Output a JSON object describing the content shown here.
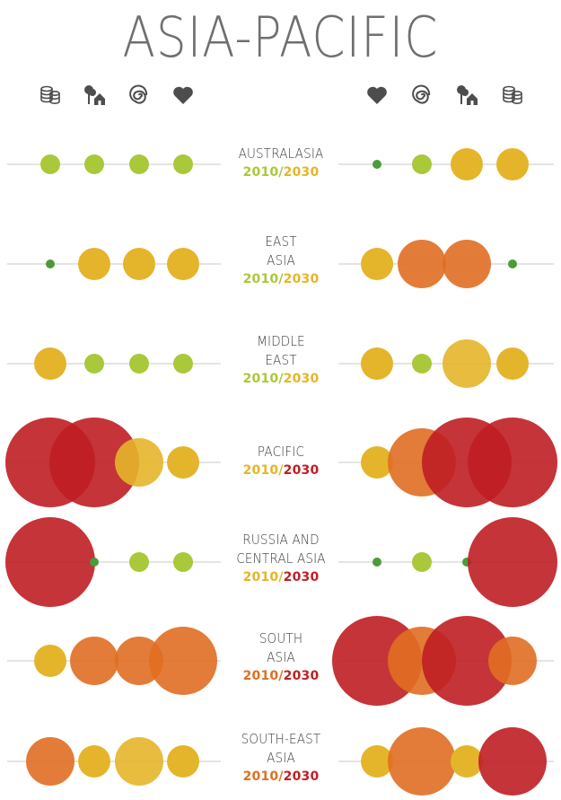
{
  "title": "ASIA-PACIFIC",
  "icons": {
    "left": [
      "coins-icon",
      "trees-and-house-icon",
      "spiral-icon",
      "heart-icon"
    ],
    "right": [
      "heart-icon",
      "spiral-icon",
      "trees-and-house-icon",
      "coins-icon"
    ]
  },
  "colors": {
    "line": "#c9c9c9",
    "icon": "#4d4d4d",
    "level_1": "#a9c83a",
    "level_0": "#4c9a3a",
    "level_2": "#e4b52a",
    "level_3": "#e06e22",
    "level_4": "#bf1e24",
    "label_text": "#3a3a3a"
  },
  "chart_data": {
    "type": "bubble",
    "title": "ASIA-PACIFIC",
    "level_colors": [
      "#4c9a3a",
      "#a9c83a",
      "#e4b52a",
      "#e06e22",
      "#bf1e24"
    ],
    "years": [
      "2010",
      "2030"
    ],
    "rows": [
      {
        "region": "AUSTRALASIA",
        "year_levels": [
          1,
          2
        ],
        "left": [
          {
            "level": 1,
            "size": 11
          },
          {
            "level": 1,
            "size": 11
          },
          {
            "level": 1,
            "size": 11
          },
          {
            "level": 1,
            "size": 11
          }
        ],
        "right": [
          {
            "level": 0,
            "size": 5
          },
          {
            "level": 1,
            "size": 11
          },
          {
            "level": 2,
            "size": 18
          },
          {
            "level": 2,
            "size": 18
          }
        ]
      },
      {
        "region": "EAST\nASIA",
        "year_levels": [
          1,
          2
        ],
        "left": [
          {
            "level": 0,
            "size": 5
          },
          {
            "level": 2,
            "size": 18
          },
          {
            "level": 2,
            "size": 18
          },
          {
            "level": 2,
            "size": 18
          }
        ],
        "right": [
          {
            "level": 2,
            "size": 18
          },
          {
            "level": 3,
            "size": 27
          },
          {
            "level": 3,
            "size": 27
          },
          {
            "level": 0,
            "size": 5
          }
        ]
      },
      {
        "region": "MIDDLE\nEAST",
        "year_levels": [
          1,
          2
        ],
        "left": [
          {
            "level": 2,
            "size": 18
          },
          {
            "level": 1,
            "size": 11
          },
          {
            "level": 1,
            "size": 11
          },
          {
            "level": 1,
            "size": 11
          }
        ],
        "right": [
          {
            "level": 2,
            "size": 18
          },
          {
            "level": 1,
            "size": 11
          },
          {
            "level": 2,
            "size": 27
          },
          {
            "level": 2,
            "size": 18
          }
        ]
      },
      {
        "region": "PACIFIC",
        "year_levels": [
          2,
          4
        ],
        "left": [
          {
            "level": 4,
            "size": 50
          },
          {
            "level": 4,
            "size": 50
          },
          {
            "level": 2,
            "size": 27
          },
          {
            "level": 2,
            "size": 18
          }
        ],
        "right": [
          {
            "level": 2,
            "size": 18
          },
          {
            "level": 3,
            "size": 38
          },
          {
            "level": 4,
            "size": 50
          },
          {
            "level": 4,
            "size": 50
          }
        ]
      },
      {
        "region": "RUSSIA AND\nCENTRAL ASIA",
        "year_levels": [
          2,
          4
        ],
        "left": [
          {
            "level": 4,
            "size": 50
          },
          {
            "level": 0,
            "size": 5
          },
          {
            "level": 1,
            "size": 11
          },
          {
            "level": 1,
            "size": 11
          }
        ],
        "right": [
          {
            "level": 0,
            "size": 5
          },
          {
            "level": 1,
            "size": 11
          },
          {
            "level": 0,
            "size": 5
          },
          {
            "level": 4,
            "size": 50
          }
        ]
      },
      {
        "region": "SOUTH\nASIA",
        "year_levels": [
          3,
          4
        ],
        "left": [
          {
            "level": 2,
            "size": 18
          },
          {
            "level": 3,
            "size": 27
          },
          {
            "level": 3,
            "size": 27
          },
          {
            "level": 3,
            "size": 38
          }
        ],
        "right": [
          {
            "level": 4,
            "size": 50
          },
          {
            "level": 3,
            "size": 38
          },
          {
            "level": 4,
            "size": 50
          },
          {
            "level": 3,
            "size": 27
          }
        ]
      },
      {
        "region": "SOUTH-EAST\nASIA",
        "year_levels": [
          3,
          4
        ],
        "left": [
          {
            "level": 3,
            "size": 27
          },
          {
            "level": 2,
            "size": 18
          },
          {
            "level": 2,
            "size": 27
          },
          {
            "level": 2,
            "size": 18
          }
        ],
        "right": [
          {
            "level": 2,
            "size": 18
          },
          {
            "level": 3,
            "size": 38
          },
          {
            "level": 2,
            "size": 18
          },
          {
            "level": 4,
            "size": 38
          }
        ]
      }
    ]
  }
}
